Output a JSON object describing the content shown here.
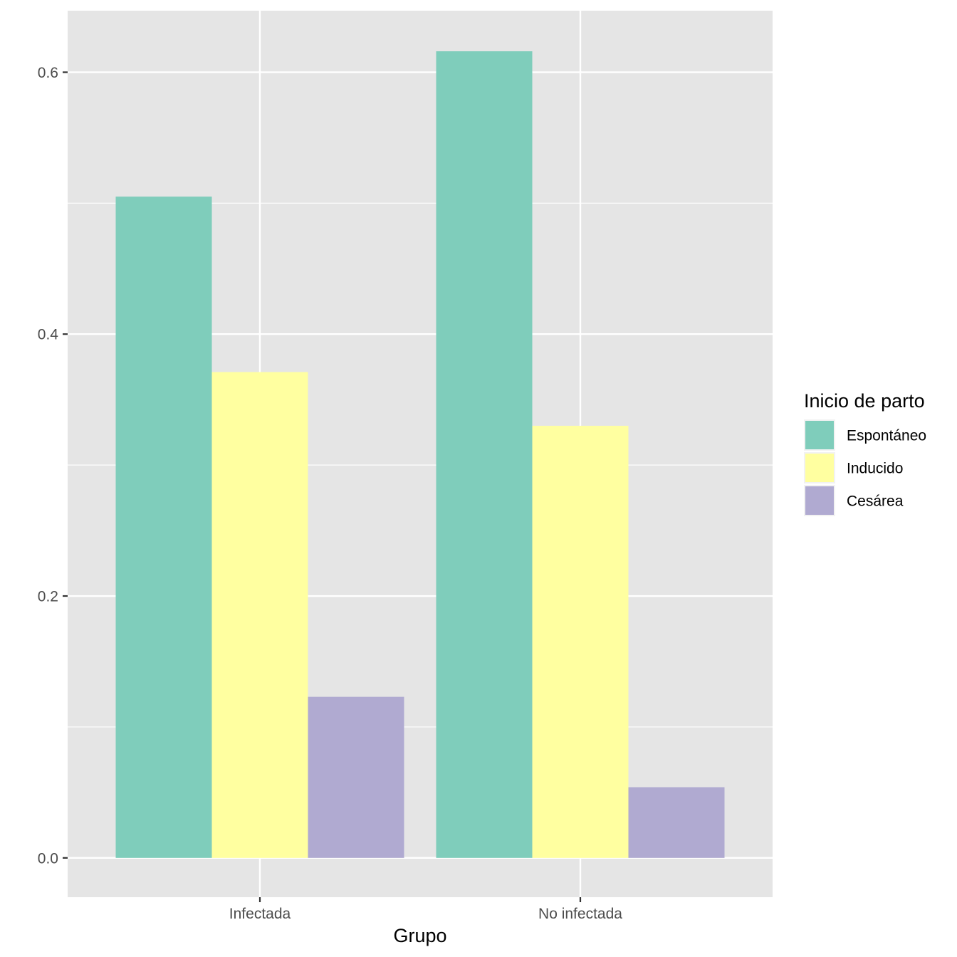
{
  "chart_data": {
    "type": "bar",
    "categories": [
      "Infectada",
      "No infectada"
    ],
    "series": [
      {
        "name": "Espontáneo",
        "values": [
          0.505,
          0.616
        ],
        "color": "#7FCDBB"
      },
      {
        "name": "Inducido",
        "values": [
          0.371,
          0.33
        ],
        "color": "#FFFFA0"
      },
      {
        "name": "Cesárea",
        "values": [
          0.123,
          0.054
        ],
        "color": "#B0AAD1"
      }
    ],
    "title": "",
    "xlabel": "Grupo",
    "ylabel": "",
    "ylim": [
      -0.03,
      0.647
    ],
    "yticks": [
      0.0,
      0.2,
      0.4,
      0.6
    ],
    "ytick_labels": [
      "0.0",
      "0.2",
      "0.4",
      "0.6"
    ],
    "grid": true,
    "legend": {
      "title": "Inicio de parto",
      "position": "right"
    },
    "panel_background": "#E5E5E5",
    "gridline_color": "#FFFFFF"
  }
}
